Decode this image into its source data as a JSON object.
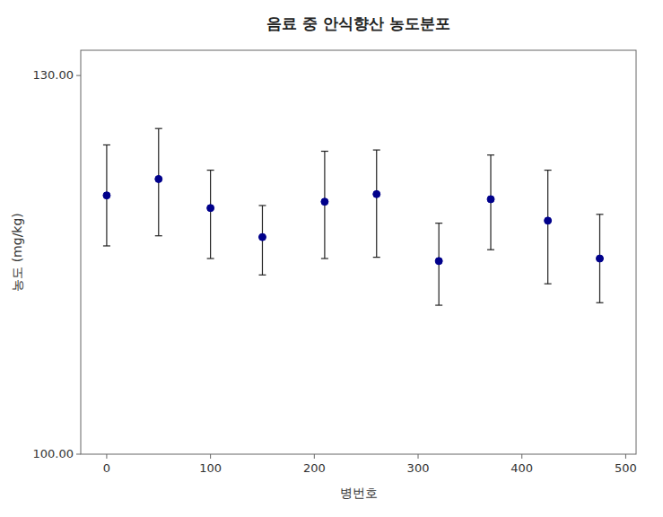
{
  "chart_data": {
    "type": "scatter",
    "title": "음료 중 안식향산 농도분포",
    "xlabel": "병번호",
    "ylabel": "농도 (mg/kg)",
    "x": [
      0,
      50,
      100,
      150,
      210,
      260,
      320,
      370,
      425,
      475
    ],
    "values": [
      120.5,
      121.8,
      119.5,
      117.2,
      120.0,
      120.6,
      115.3,
      120.2,
      118.5,
      115.5
    ],
    "yerr_lower": [
      4.0,
      4.5,
      4.0,
      3.0,
      4.5,
      5.0,
      3.5,
      4.0,
      5.0,
      3.5
    ],
    "yerr_upper": [
      4.0,
      4.0,
      3.0,
      2.5,
      4.0,
      3.5,
      3.0,
      3.5,
      4.0,
      3.5
    ],
    "color": "#00008B",
    "marker": "circle",
    "xlim": [
      -25,
      510
    ],
    "ylim": [
      100.0,
      132.0
    ],
    "xticks": [
      0,
      100,
      200,
      300,
      400,
      500
    ],
    "yticks": [
      {
        "value": 100.0,
        "label": "100.00"
      },
      {
        "value": 130.0,
        "label": "130.00"
      }
    ],
    "grid": false
  }
}
